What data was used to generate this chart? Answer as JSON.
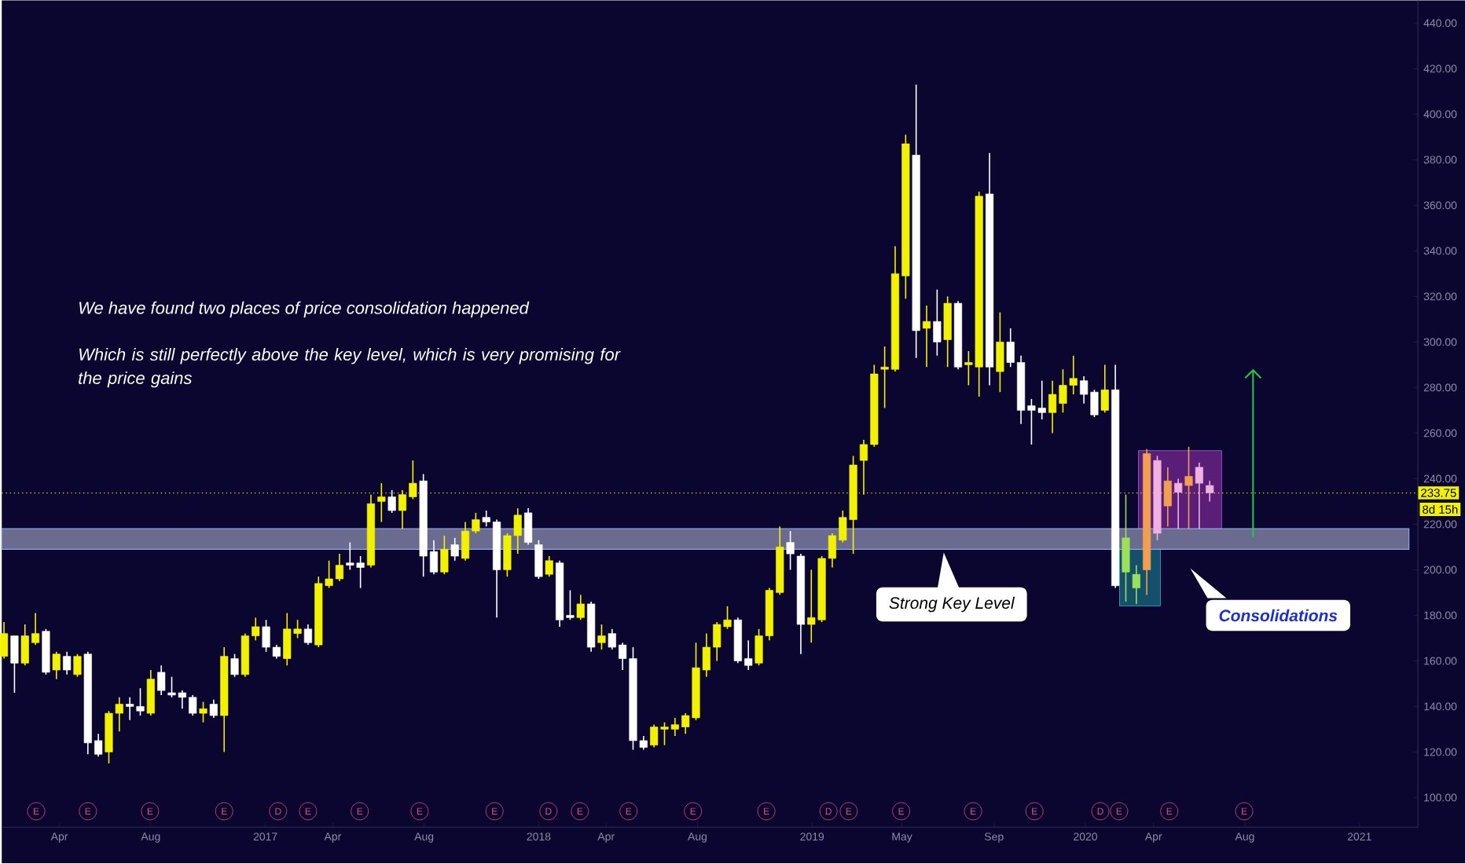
{
  "chart_data": {
    "type": "candlestick",
    "x": [
      "2016-01-18",
      "2016-02-01",
      "2016-02-15",
      "2016-02-29",
      "2016-03-14",
      "2016-03-28",
      "2016-04-11",
      "2016-04-25",
      "2016-05-09",
      "2016-05-23",
      "2016-06-06",
      "2016-06-20",
      "2016-07-04",
      "2016-07-18",
      "2016-08-01",
      "2016-08-15",
      "2016-08-29",
      "2016-09-12",
      "2016-09-26",
      "2016-10-10",
      "2016-10-24",
      "2016-11-07",
      "2016-11-21",
      "2016-12-05",
      "2016-12-19",
      "2017-01-02",
      "2017-01-16",
      "2017-01-30",
      "2017-02-13",
      "2017-02-27",
      "2017-03-13",
      "2017-03-27",
      "2017-04-10",
      "2017-04-24",
      "2017-05-08",
      "2017-05-22",
      "2017-06-05",
      "2017-06-19",
      "2017-07-03",
      "2017-07-17",
      "2017-07-31",
      "2017-08-14",
      "2017-08-28",
      "2017-09-11",
      "2017-09-25",
      "2017-10-09",
      "2017-10-23",
      "2017-11-06",
      "2017-11-20",
      "2017-12-04",
      "2017-12-18",
      "2018-01-01",
      "2018-01-15",
      "2018-01-29",
      "2018-02-12",
      "2018-02-26",
      "2018-03-12",
      "2018-03-26",
      "2018-04-09",
      "2018-04-23",
      "2018-05-07",
      "2018-05-21",
      "2018-06-04",
      "2018-06-18",
      "2018-07-02",
      "2018-07-16",
      "2018-07-30",
      "2018-08-13",
      "2018-08-27",
      "2018-09-10",
      "2018-09-24",
      "2018-10-08",
      "2018-10-22",
      "2018-11-05",
      "2018-11-19",
      "2018-12-03",
      "2018-12-17",
      "2018-12-31",
      "2019-01-14",
      "2019-01-28",
      "2019-02-11",
      "2019-02-25",
      "2019-03-11",
      "2019-03-25",
      "2019-04-08",
      "2019-04-22",
      "2019-05-06",
      "2019-05-20",
      "2019-06-03",
      "2019-06-17",
      "2019-07-01",
      "2019-07-15",
      "2019-07-29",
      "2019-08-12",
      "2019-08-26",
      "2019-09-09",
      "2019-09-23",
      "2019-10-07",
      "2019-10-21",
      "2019-11-04",
      "2019-11-18",
      "2019-12-02",
      "2019-12-16",
      "2019-12-30",
      "2020-01-13",
      "2020-01-27",
      "2020-02-10",
      "2020-02-24",
      "2020-03-09",
      "2020-03-23",
      "2020-04-06",
      "2020-04-20",
      "2020-05-04",
      "2020-05-18",
      "2020-06-01",
      "2020-06-15"
    ],
    "ohlc": [
      [
        162,
        177,
        161,
        172
      ],
      [
        171,
        171,
        146,
        159
      ],
      [
        159,
        176,
        158,
        171
      ],
      [
        168,
        181,
        167,
        172
      ],
      [
        173,
        174,
        154,
        155
      ],
      [
        156,
        164,
        152,
        163
      ],
      [
        162,
        164,
        154,
        156
      ],
      [
        154,
        163,
        153,
        162
      ],
      [
        163,
        164,
        119,
        124
      ],
      [
        125,
        128,
        118,
        119
      ],
      [
        120,
        138,
        115,
        137
      ],
      [
        137,
        144,
        129,
        141
      ],
      [
        141,
        144,
        134,
        140
      ],
      [
        140,
        148,
        136,
        138
      ],
      [
        137,
        156,
        136,
        152
      ],
      [
        155,
        158,
        145,
        147
      ],
      [
        146,
        153,
        144,
        145
      ],
      [
        146,
        147,
        139,
        144
      ],
      [
        144,
        145,
        136,
        137
      ],
      [
        137,
        142,
        133,
        139
      ],
      [
        141,
        143,
        135,
        136
      ],
      [
        136,
        166,
        120,
        162
      ],
      [
        161,
        163,
        153,
        154
      ],
      [
        154,
        172,
        153,
        171
      ],
      [
        171,
        179,
        169,
        175
      ],
      [
        175,
        178,
        164,
        166
      ],
      [
        166,
        167,
        161,
        162
      ],
      [
        161,
        181,
        158,
        174
      ],
      [
        172,
        178,
        170,
        174
      ],
      [
        174,
        176,
        167,
        168
      ],
      [
        167,
        197,
        166,
        194
      ],
      [
        193,
        204,
        192,
        196
      ],
      [
        196,
        207,
        195,
        202
      ],
      [
        203,
        212,
        200,
        202
      ],
      [
        203,
        206,
        192,
        201
      ],
      [
        202,
        233,
        201,
        229
      ],
      [
        230,
        238,
        221,
        232
      ],
      [
        232,
        235,
        225,
        226
      ],
      [
        226,
        235,
        218,
        233
      ],
      [
        232,
        248,
        231,
        238
      ],
      [
        239,
        242,
        197,
        206
      ],
      [
        208,
        213,
        198,
        199
      ],
      [
        199,
        215,
        198,
        209
      ],
      [
        211,
        214,
        204,
        206
      ],
      [
        205,
        221,
        204,
        217
      ],
      [
        217,
        225,
        216,
        222
      ],
      [
        223,
        226,
        219,
        221
      ],
      [
        221,
        222,
        179,
        200
      ],
      [
        200,
        216,
        197,
        215
      ],
      [
        215,
        227,
        207,
        224
      ],
      [
        225,
        227,
        211,
        212
      ],
      [
        211,
        213,
        196,
        197
      ],
      [
        198,
        206,
        197,
        204
      ],
      [
        203,
        204,
        175,
        178
      ],
      [
        180,
        191,
        178,
        179
      ],
      [
        179,
        189,
        178,
        185
      ],
      [
        185,
        186,
        164,
        166
      ],
      [
        168,
        176,
        165,
        171
      ],
      [
        172,
        174,
        165,
        166
      ],
      [
        167,
        168,
        156,
        161
      ],
      [
        161,
        166,
        121,
        125
      ],
      [
        125,
        127,
        121,
        122
      ],
      [
        123,
        132,
        122,
        131
      ],
      [
        130,
        133,
        123,
        131
      ],
      [
        130,
        135,
        127,
        132
      ],
      [
        131,
        137,
        128,
        136
      ],
      [
        135,
        168,
        134,
        157
      ],
      [
        156,
        172,
        153,
        166
      ],
      [
        166,
        177,
        160,
        176
      ],
      [
        175,
        184,
        174,
        178
      ],
      [
        178,
        179,
        159,
        160
      ],
      [
        161,
        169,
        156,
        158
      ],
      [
        159,
        174,
        158,
        171
      ],
      [
        171,
        192,
        169,
        191
      ],
      [
        190,
        219,
        189,
        210
      ],
      [
        212,
        217,
        200,
        207
      ],
      [
        206,
        207,
        163,
        176
      ],
      [
        176,
        200,
        168,
        179
      ],
      [
        178,
        206,
        177,
        205
      ],
      [
        205,
        216,
        201,
        215
      ],
      [
        213,
        226,
        212,
        223
      ],
      [
        222,
        250,
        207,
        246
      ],
      [
        248,
        257,
        233,
        255
      ],
      [
        255,
        290,
        254,
        286
      ],
      [
        288,
        298,
        271,
        289
      ],
      [
        288,
        342,
        287,
        330
      ],
      [
        329,
        391,
        319,
        387
      ],
      [
        382,
        413,
        293,
        305
      ],
      [
        306,
        316,
        289,
        309
      ],
      [
        309,
        323,
        294,
        300
      ],
      [
        301,
        320,
        289,
        317
      ],
      [
        317,
        318,
        288,
        289
      ],
      [
        290,
        296,
        281,
        291
      ],
      [
        289,
        366,
        276,
        364
      ],
      [
        365,
        383,
        281,
        289
      ],
      [
        287,
        313,
        278,
        300
      ],
      [
        300,
        306,
        289,
        291
      ],
      [
        291,
        294,
        264,
        270
      ],
      [
        272,
        275,
        255,
        270
      ],
      [
        271,
        283,
        266,
        269
      ],
      [
        269,
        283,
        260,
        277
      ],
      [
        273,
        288,
        269,
        281
      ],
      [
        281,
        294,
        277,
        284
      ],
      [
        283,
        285,
        273,
        277
      ],
      [
        278,
        279,
        267,
        268
      ],
      [
        270,
        290,
        269,
        279
      ],
      [
        279,
        290,
        192,
        193
      ],
      [
        199,
        233,
        186,
        214
      ],
      [
        192,
        202,
        185,
        198
      ],
      [
        200,
        253,
        189,
        251
      ],
      [
        248,
        250,
        213,
        216
      ],
      [
        228,
        245,
        219,
        239
      ],
      [
        238,
        240,
        218,
        234
      ],
      [
        237,
        254,
        218,
        241
      ],
      [
        245,
        247,
        218,
        238
      ],
      [
        237,
        239,
        230,
        233.75
      ]
    ],
    "colors": [
      "#f2f200",
      "#ffffff",
      "#f2f200",
      "#f2f200",
      "#ffffff",
      "#f2f200",
      "#ffffff",
      "#f2f200",
      "#ffffff",
      "#ffffff",
      "#f2f200",
      "#f2f200",
      "#ffffff",
      "#ffffff",
      "#f2f200",
      "#ffffff",
      "#ffffff",
      "#ffffff",
      "#ffffff",
      "#f2f200",
      "#ffffff",
      "#f2f200",
      "#ffffff",
      "#f2f200",
      "#f2f200",
      "#ffffff",
      "#ffffff",
      "#f2f200",
      "#f2f200",
      "#ffffff",
      "#f2f200",
      "#f2f200",
      "#f2f200",
      "#ffffff",
      "#ffffff",
      "#f2f200",
      "#f2f200",
      "#ffffff",
      "#f2f200",
      "#f2f200",
      "#ffffff",
      "#ffffff",
      "#f2f200",
      "#ffffff",
      "#f2f200",
      "#f2f200",
      "#ffffff",
      "#ffffff",
      "#f2f200",
      "#f2f200",
      "#ffffff",
      "#ffffff",
      "#f2f200",
      "#ffffff",
      "#ffffff",
      "#f2f200",
      "#ffffff",
      "#f2f200",
      "#ffffff",
      "#ffffff",
      "#ffffff",
      "#ffffff",
      "#f2f200",
      "#f2f200",
      "#f2f200",
      "#f2f200",
      "#f2f200",
      "#f2f200",
      "#f2f200",
      "#f2f200",
      "#ffffff",
      "#ffffff",
      "#f2f200",
      "#f2f200",
      "#f2f200",
      "#ffffff",
      "#ffffff",
      "#f2f200",
      "#f2f200",
      "#f2f200",
      "#f2f200",
      "#f2f200",
      "#f2f200",
      "#f2f200",
      "#f2f200",
      "#f2f200",
      "#f2f200",
      "#ffffff",
      "#f2f200",
      "#ffffff",
      "#f2f200",
      "#ffffff",
      "#f2f200",
      "#f2f200",
      "#ffffff",
      "#f2f200",
      "#ffffff",
      "#ffffff",
      "#ffffff",
      "#ffffff",
      "#f2f200",
      "#f2f200",
      "#f2f200",
      "#ffffff",
      "#ffffff",
      "#f2f200",
      "#ffffff",
      "#9be05a",
      "#9be05a",
      "#f0a050",
      "#f0b0e0",
      "#f0a050",
      "#f0b0e0",
      "#f0a050",
      "#f0b0e0",
      "#f0b0e0"
    ],
    "xlim": [
      "2016-01-15",
      "2021-03-20"
    ],
    "ylim": [
      87,
      450
    ],
    "xticks": [
      {
        "value": "2016-04-01",
        "label": "Apr"
      },
      {
        "value": "2016-08-01",
        "label": "Aug"
      },
      {
        "value": "2017-01-01",
        "label": "2017"
      },
      {
        "value": "2017-04-01",
        "label": "Apr"
      },
      {
        "value": "2017-08-01",
        "label": "Aug"
      },
      {
        "value": "2018-01-01",
        "label": "2018"
      },
      {
        "value": "2018-04-01",
        "label": "Apr"
      },
      {
        "value": "2018-08-01",
        "label": "Aug"
      },
      {
        "value": "2019-01-01",
        "label": "2019"
      },
      {
        "value": "2019-05-01",
        "label": "May"
      },
      {
        "value": "2019-09-01",
        "label": "Sep"
      },
      {
        "value": "2020-01-01",
        "label": "2020"
      },
      {
        "value": "2020-04-01",
        "label": "Apr"
      },
      {
        "value": "2020-08-01",
        "label": "Aug"
      },
      {
        "value": "2021-01-01",
        "label": "2021"
      }
    ],
    "yticks": [
      {
        "value": 100,
        "label": "100.00"
      },
      {
        "value": 120,
        "label": "120.00"
      },
      {
        "value": 140,
        "label": "140.00"
      },
      {
        "value": 160,
        "label": "160.00"
      },
      {
        "value": 180,
        "label": "180.00"
      },
      {
        "value": 200,
        "label": "200.00"
      },
      {
        "value": 220,
        "label": "220.00"
      },
      {
        "value": 240,
        "label": "240.00"
      },
      {
        "value": 260,
        "label": "260.00"
      },
      {
        "value": 280,
        "label": "280.00"
      },
      {
        "value": 300,
        "label": "300.00"
      },
      {
        "value": 320,
        "label": "320.00"
      },
      {
        "value": 340,
        "label": "340.00"
      },
      {
        "value": 360,
        "label": "360.00"
      },
      {
        "value": 380,
        "label": "380.00"
      },
      {
        "value": 400,
        "label": "400.00"
      },
      {
        "value": 420,
        "label": "420.00"
      },
      {
        "value": 440,
        "label": "440.00"
      }
    ],
    "ref_lines": [
      {
        "axis": "y",
        "value": 233.75,
        "label": "233.75",
        "color": "#f2f200",
        "line_style": "dotted"
      }
    ],
    "bands": [
      {
        "axis": "y",
        "from": 209,
        "to": 218,
        "label": "Strong Key Level",
        "color": "#6b6b8f"
      }
    ],
    "annotations": [
      "We have found two places of price consolidation happened",
      "Which is still perfectly above the key level, which is very promising for the price gains",
      "Consolidations",
      "8d 15h",
      {
        "text": "E",
        "x": "2016-03-01",
        "y": 94
      },
      {
        "text": "E",
        "x": "2016-05-09",
        "y": 94
      },
      {
        "text": "E",
        "x": "2016-07-31",
        "y": 94
      },
      {
        "text": "E",
        "x": "2016-11-07",
        "y": 94
      },
      {
        "text": "D",
        "x": "2017-01-18",
        "y": 94
      },
      {
        "text": "E",
        "x": "2017-02-27",
        "y": 94
      },
      {
        "text": "E",
        "x": "2017-05-07",
        "y": 94
      },
      {
        "text": "E",
        "x": "2017-07-26",
        "y": 94
      },
      {
        "text": "E",
        "x": "2017-11-03",
        "y": 94
      },
      {
        "text": "D",
        "x": "2018-01-14",
        "y": 94
      },
      {
        "text": "E",
        "x": "2018-02-25",
        "y": 94
      },
      {
        "text": "E",
        "x": "2018-05-01",
        "y": 94
      },
      {
        "text": "E",
        "x": "2018-07-26",
        "y": 94
      },
      {
        "text": "E",
        "x": "2018-11-01",
        "y": 94
      },
      {
        "text": "D",
        "x": "2019-01-23",
        "y": 94
      },
      {
        "text": "E",
        "x": "2019-02-19",
        "y": 94
      },
      {
        "text": "E",
        "x": "2019-04-30",
        "y": 94
      },
      {
        "text": "E",
        "x": "2019-08-04",
        "y": 94
      },
      {
        "text": "E",
        "x": "2019-10-25",
        "y": 94
      },
      {
        "text": "D",
        "x": "2020-01-21",
        "y": 94
      },
      {
        "text": "E",
        "x": "2020-02-15",
        "y": 94
      },
      {
        "text": "E",
        "x": "2020-04-22",
        "y": 94
      },
      {
        "text": "E",
        "x": "2020-07-31",
        "y": 94
      }
    ]
  }
}
